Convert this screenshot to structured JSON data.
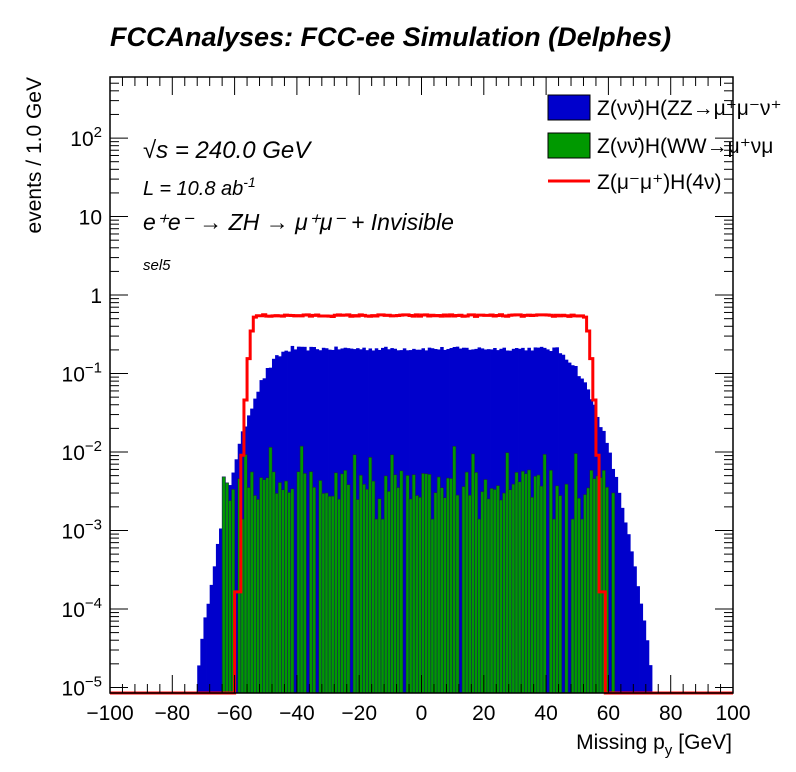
{
  "chart_data": {
    "type": "bar",
    "title": "FCCAnalyses: FCC-ee Simulation (Delphes)",
    "xlabel_main": "Missing p",
    "xlabel_sub": "y",
    "xlabel_unit": "[GeV]",
    "ylabel": "events / 1.0 GeV",
    "xlim": [
      -100,
      100
    ],
    "ylim": [
      8.5e-06,
      600
    ],
    "ylog": true,
    "x_ticks": [
      "−100",
      "−80",
      "−60",
      "−40",
      "−20",
      "0",
      "20",
      "40",
      "60",
      "80",
      "100"
    ],
    "y_ticks": [
      {
        "base": "10",
        "exp": "−5"
      },
      {
        "base": "10",
        "exp": "−4"
      },
      {
        "base": "10",
        "exp": "−3"
      },
      {
        "base": "10",
        "exp": "−2"
      },
      {
        "base": "10",
        "exp": "−1"
      },
      {
        "base": "1",
        "exp": ""
      },
      {
        "base": "10",
        "exp": ""
      },
      {
        "base": "10",
        "exp": "2"
      }
    ],
    "annotations": {
      "energy": "√s = 240.0 GeV",
      "lumi": "L = 10.8 ab",
      "lumi_exp": "-1",
      "process": "e⁺e⁻ → ZH → μ⁺μ⁻ + Invisible",
      "selection": "sel5"
    },
    "legend_position": "top-right",
    "series": [
      {
        "name": "Z(νν̄)H(ZZ→μ⁺μ⁻ν⁺ν⁻)",
        "legend_visible": "Z(νν̄)H(ZZ→μ⁺μ⁻ν⁺",
        "style": "filled",
        "color": "#0000cc",
        "shape": {
          "peak": 0.21,
          "x_min": -72,
          "x_max": 74,
          "plateau": [
            -40,
            40
          ],
          "edge_low": 1.5e-05
        }
      },
      {
        "name": "Z(νν̄)H(WW→μ⁺νμ⁻ν)",
        "legend_visible": "Z(νν̄)H(WW→μ⁺νμ",
        "style": "filled",
        "color": "#009900",
        "shape": {
          "mean": 0.004,
          "x_min": -64,
          "x_max": 62,
          "max": 0.012
        }
      },
      {
        "name": "Z(μ⁻μ⁺)H(4ν)",
        "legend_visible": "Z(μ⁻μ⁺)H(4ν)",
        "style": "line",
        "color": "#ff0000",
        "shape": {
          "plateau": 0.55,
          "x_min": -58,
          "x_max": 57,
          "floor": 8.5e-06
        }
      }
    ]
  }
}
